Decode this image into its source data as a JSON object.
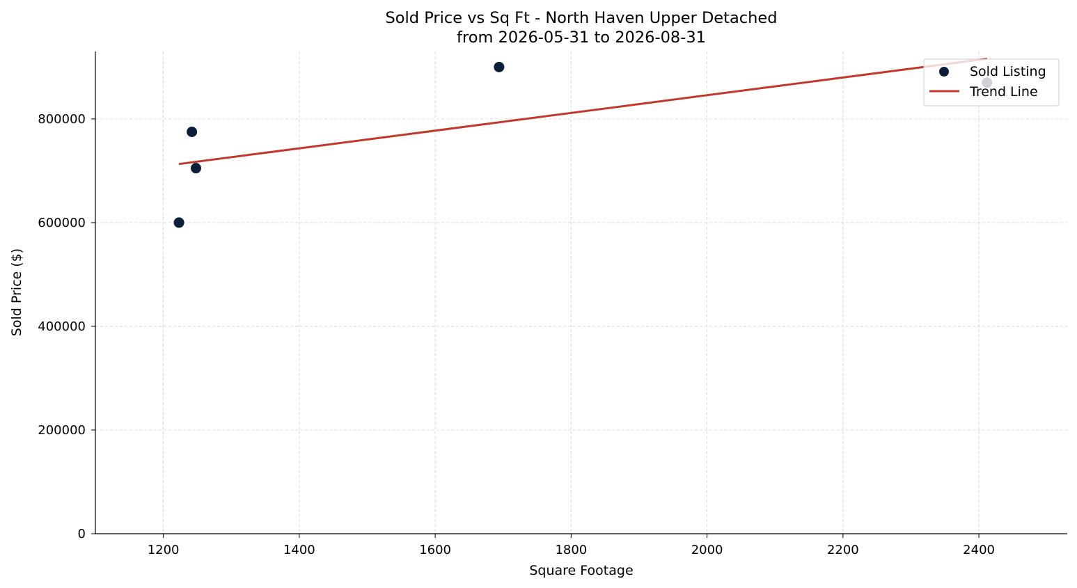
{
  "chart_data": {
    "type": "scatter",
    "title": "Sold Price vs Sq Ft - North Haven Upper Detached",
    "subtitle": "from 2026-05-31 to 2026-08-31",
    "xlabel": "Square Footage",
    "ylabel": "Sold Price ($)",
    "xlim": [
      1100,
      2530
    ],
    "ylim": [
      0,
      930000
    ],
    "xticks": [
      1200,
      1400,
      1600,
      1800,
      2000,
      2200,
      2400
    ],
    "yticks": [
      0,
      200000,
      400000,
      600000,
      800000
    ],
    "grid": true,
    "legend_position": "top-right",
    "series": [
      {
        "name": "Sold Listing",
        "kind": "scatter",
        "color": "#0b1f3a",
        "points": [
          {
            "x": 1223,
            "y": 600000
          },
          {
            "x": 1242,
            "y": 775000
          },
          {
            "x": 1248,
            "y": 705000
          },
          {
            "x": 1694,
            "y": 900000
          },
          {
            "x": 2412,
            "y": 870000
          }
        ]
      },
      {
        "name": "Trend Line",
        "kind": "line",
        "color": "#c0392b",
        "points": [
          {
            "x": 1223,
            "y": 713000
          },
          {
            "x": 2412,
            "y": 916000
          }
        ]
      }
    ]
  }
}
